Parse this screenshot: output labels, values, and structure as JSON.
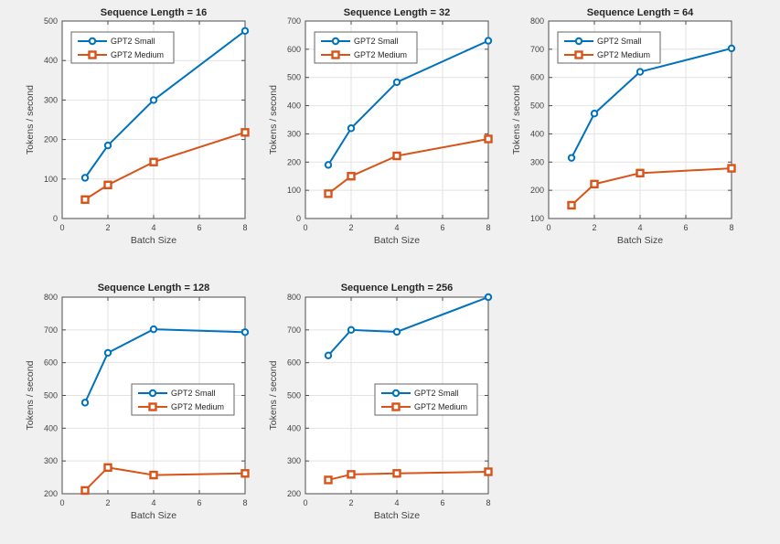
{
  "figure": {
    "background_color": "#f0f0f0",
    "plot_background_color": "#ffffff",
    "grid_color": "#e2e2e2",
    "axis_color": "#4d4d4d",
    "tick_label_color": "#424242",
    "title_color": "#262626",
    "legend_border_color": "#666666",
    "series_meta": [
      {
        "name": "GPT2 Small",
        "color": "#0072BD",
        "marker": "circle"
      },
      {
        "name": "GPT2 Medium",
        "color": "#D95319",
        "marker": "square"
      }
    ]
  },
  "chart_data": [
    {
      "type": "line",
      "title": "Sequence Length = 16",
      "xlabel": "Batch Size",
      "ylabel": "Tokens / second",
      "x": [
        1,
        2,
        4,
        8
      ],
      "series": [
        {
          "name": "GPT2 Small",
          "color": "#0072BD",
          "marker": "circle",
          "values": [
            103,
            185,
            300,
            475
          ]
        },
        {
          "name": "GPT2 Medium",
          "color": "#D95319",
          "marker": "square",
          "values": [
            48,
            85,
            143,
            218
          ]
        }
      ],
      "xlim": [
        0,
        8
      ],
      "ylim": [
        0,
        500
      ],
      "xticks": [
        0,
        2,
        4,
        6,
        8
      ],
      "yticks": [
        0,
        100,
        200,
        300,
        400,
        500
      ],
      "grid": true,
      "legend_position": "northwest"
    },
    {
      "type": "line",
      "title": "Sequence Length = 32",
      "xlabel": "Batch Size",
      "ylabel": "Tokens / second",
      "x": [
        1,
        2,
        4,
        8
      ],
      "series": [
        {
          "name": "GPT2 Small",
          "color": "#0072BD",
          "marker": "circle",
          "values": [
            190,
            320,
            483,
            630
          ]
        },
        {
          "name": "GPT2 Medium",
          "color": "#D95319",
          "marker": "square",
          "values": [
            88,
            150,
            222,
            282
          ]
        }
      ],
      "xlim": [
        0,
        8
      ],
      "ylim": [
        0,
        700
      ],
      "xticks": [
        0,
        2,
        4,
        6,
        8
      ],
      "yticks": [
        0,
        100,
        200,
        300,
        400,
        500,
        600,
        700
      ],
      "grid": true,
      "legend_position": "northwest"
    },
    {
      "type": "line",
      "title": "Sequence Length = 64",
      "xlabel": "Batch Size",
      "ylabel": "Tokens / second",
      "x": [
        1,
        2,
        4,
        8
      ],
      "series": [
        {
          "name": "GPT2 Small",
          "color": "#0072BD",
          "marker": "circle",
          "values": [
            315,
            472,
            620,
            703
          ]
        },
        {
          "name": "GPT2 Medium",
          "color": "#D95319",
          "marker": "square",
          "values": [
            147,
            222,
            261,
            278
          ]
        }
      ],
      "xlim": [
        0,
        8
      ],
      "ylim": [
        100,
        800
      ],
      "xticks": [
        0,
        2,
        4,
        6,
        8
      ],
      "yticks": [
        100,
        200,
        300,
        400,
        500,
        600,
        700,
        800
      ],
      "grid": true,
      "legend_position": "northwest"
    },
    {
      "type": "line",
      "title": "Sequence Length = 128",
      "xlabel": "Batch Size",
      "ylabel": "Tokens / second",
      "x": [
        1,
        2,
        4,
        8
      ],
      "series": [
        {
          "name": "GPT2 Small",
          "color": "#0072BD",
          "marker": "circle",
          "values": [
            478,
            630,
            702,
            693
          ]
        },
        {
          "name": "GPT2 Medium",
          "color": "#D95319",
          "marker": "square",
          "values": [
            210,
            280,
            257,
            262
          ]
        }
      ],
      "xlim": [
        0,
        8
      ],
      "ylim": [
        200,
        800
      ],
      "xticks": [
        0,
        2,
        4,
        6,
        8
      ],
      "yticks": [
        200,
        300,
        400,
        500,
        600,
        700,
        800
      ],
      "grid": true,
      "legend_position": "east"
    },
    {
      "type": "line",
      "title": "Sequence Length = 256",
      "xlabel": "Batch Size",
      "ylabel": "Tokens / second",
      "x": [
        1,
        2,
        4,
        8
      ],
      "series": [
        {
          "name": "GPT2 Small",
          "color": "#0072BD",
          "marker": "circle",
          "values": [
            622,
            700,
            694,
            800
          ]
        },
        {
          "name": "GPT2 Medium",
          "color": "#D95319",
          "marker": "square",
          "values": [
            242,
            259,
            262,
            267
          ]
        }
      ],
      "xlim": [
        0,
        8
      ],
      "ylim": [
        200,
        800
      ],
      "xticks": [
        0,
        2,
        4,
        6,
        8
      ],
      "yticks": [
        200,
        300,
        400,
        500,
        600,
        700,
        800
      ],
      "grid": true,
      "legend_position": "east"
    }
  ]
}
